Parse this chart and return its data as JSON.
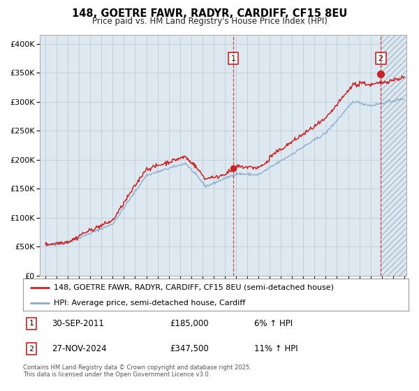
{
  "title": "148, GOETRE FAWR, RADYR, CARDIFF, CF15 8EU",
  "subtitle": "Price paid vs. HM Land Registry's House Price Index (HPI)",
  "legend_line1": "148, GOETRE FAWR, RADYR, CARDIFF, CF15 8EU (semi-detached house)",
  "legend_line2": "HPI: Average price, semi-detached house, Cardiff",
  "annotation1_date": "30-SEP-2011",
  "annotation1_price": "£185,000",
  "annotation1_hpi": "6% ↑ HPI",
  "annotation2_date": "27-NOV-2024",
  "annotation2_price": "£347,500",
  "annotation2_hpi": "11% ↑ HPI",
  "footnote": "Contains HM Land Registry data © Crown copyright and database right 2025.\nThis data is licensed under the Open Government Licence v3.0.",
  "hpi_color": "#88aacc",
  "price_color": "#cc2222",
  "bg_color": "#ffffff",
  "plot_bg_color": "#dde8f0",
  "grid_color": "#c0ccd8",
  "hatch_color": "#c8d8e8",
  "ylim_max": 400000,
  "yticks": [
    0,
    50000,
    100000,
    150000,
    200000,
    250000,
    300000,
    350000,
    400000
  ],
  "sale1_x": 2011.75,
  "sale1_y": 185000,
  "sale2_x": 2024.9,
  "sale2_y": 347500,
  "xmin": 1994.5,
  "xmax": 2027.2
}
